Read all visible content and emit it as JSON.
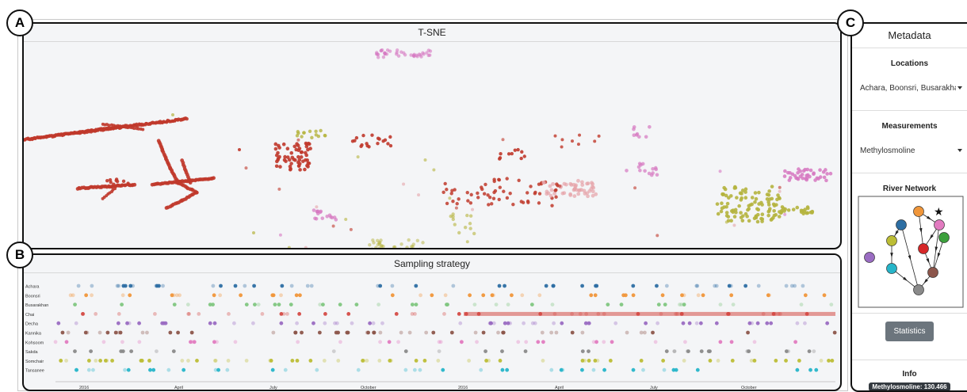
{
  "labels": {
    "a": "A",
    "b": "B",
    "c": "C"
  },
  "tsne": {
    "title": "T-SNE"
  },
  "sampling": {
    "title": "Sampling strategy",
    "rows": [
      "Achara",
      "Boonsri",
      "Busarakhan",
      "Chai",
      "Decha",
      "Kannika",
      "Kohsoom",
      "Sakda",
      "Somchair",
      "Tansanee"
    ],
    "row_colors": [
      "#2d6ea3",
      "#f0963a",
      "#7fc67f",
      "#d44a45",
      "#9a6cc2",
      "#8c564b",
      "#e27bc0",
      "#8a8a8a",
      "#bcbd35",
      "#26b5c9"
    ],
    "xticks": [
      "2016",
      "April",
      "July",
      "October",
      "2016",
      "April",
      "July",
      "October"
    ]
  },
  "metadata": {
    "title": "Metadata",
    "locations_label": "Locations",
    "locations_value": "Achara, Boonsri, Busarakhan",
    "measurements_label": "Measurements",
    "measurements_value": "Methylosmoline",
    "river_label": "River Network",
    "statistics_button": "Statistics",
    "info_label": "Info",
    "info_value": "Methylosmoline: 130.466"
  },
  "colors": {
    "chai_red": "#c0392b",
    "olive": "#b5b43e",
    "pink": "#d678c1",
    "light_pink": "#e5a3a8"
  }
}
